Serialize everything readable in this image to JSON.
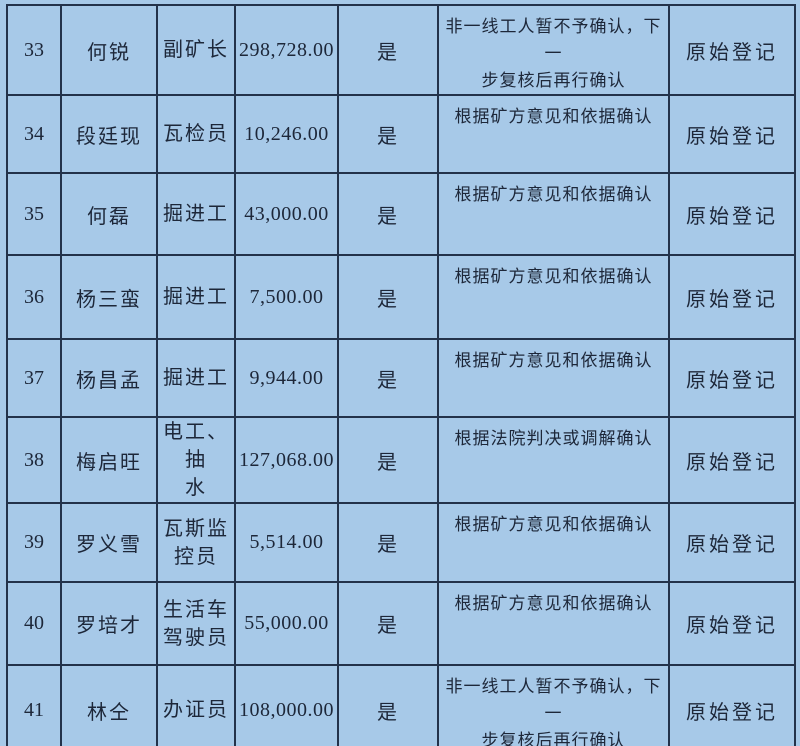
{
  "page": {
    "background_color": "#a7c9e8",
    "border_color": "#23324a",
    "text_color": "#1d2739"
  },
  "table": {
    "columns": [
      "index",
      "name",
      "position",
      "amount",
      "confirmed",
      "remark",
      "registration"
    ],
    "rows": [
      {
        "index": "33",
        "name": "何锐",
        "position": "副矿长",
        "amount": "298,728.00",
        "confirmed": "是",
        "remark": "非一线工人暂不予确认，下一\n步复核后再行确认",
        "registration": "原始登记"
      },
      {
        "index": "34",
        "name": "段廷现",
        "position": "瓦检员",
        "amount": "10,246.00",
        "confirmed": "是",
        "remark": "根据矿方意见和依据确认",
        "registration": "原始登记"
      },
      {
        "index": "35",
        "name": "何磊",
        "position": "掘进工",
        "amount": "43,000.00",
        "confirmed": "是",
        "remark": "根据矿方意见和依据确认",
        "registration": "原始登记"
      },
      {
        "index": "36",
        "name": "杨三蛮",
        "position": "掘进工",
        "amount": "7,500.00",
        "confirmed": "是",
        "remark": "根据矿方意见和依据确认",
        "registration": "原始登记"
      },
      {
        "index": "37",
        "name": "杨昌孟",
        "position": "掘进工",
        "amount": "9,944.00",
        "confirmed": "是",
        "remark": "根据矿方意见和依据确认",
        "registration": "原始登记"
      },
      {
        "index": "38",
        "name": "梅启旺",
        "position": "电工、抽\n水",
        "amount": "127,068.00",
        "confirmed": "是",
        "remark": "根据法院判决或调解确认",
        "registration": "原始登记"
      },
      {
        "index": "39",
        "name": "罗义雪",
        "position": "瓦斯监\n控员",
        "amount": "5,514.00",
        "confirmed": "是",
        "remark": "根据矿方意见和依据确认",
        "registration": "原始登记"
      },
      {
        "index": "40",
        "name": "罗培才",
        "position": "生活车\n驾驶员",
        "amount": "55,000.00",
        "confirmed": "是",
        "remark": "根据矿方意见和依据确认",
        "registration": "原始登记"
      },
      {
        "index": "41",
        "name": "林仝",
        "position": "办证员",
        "amount": "108,000.00",
        "confirmed": "是",
        "remark": "非一线工人暂不予确认，下一\n步复核后再行确认",
        "registration": "原始登记"
      }
    ]
  }
}
